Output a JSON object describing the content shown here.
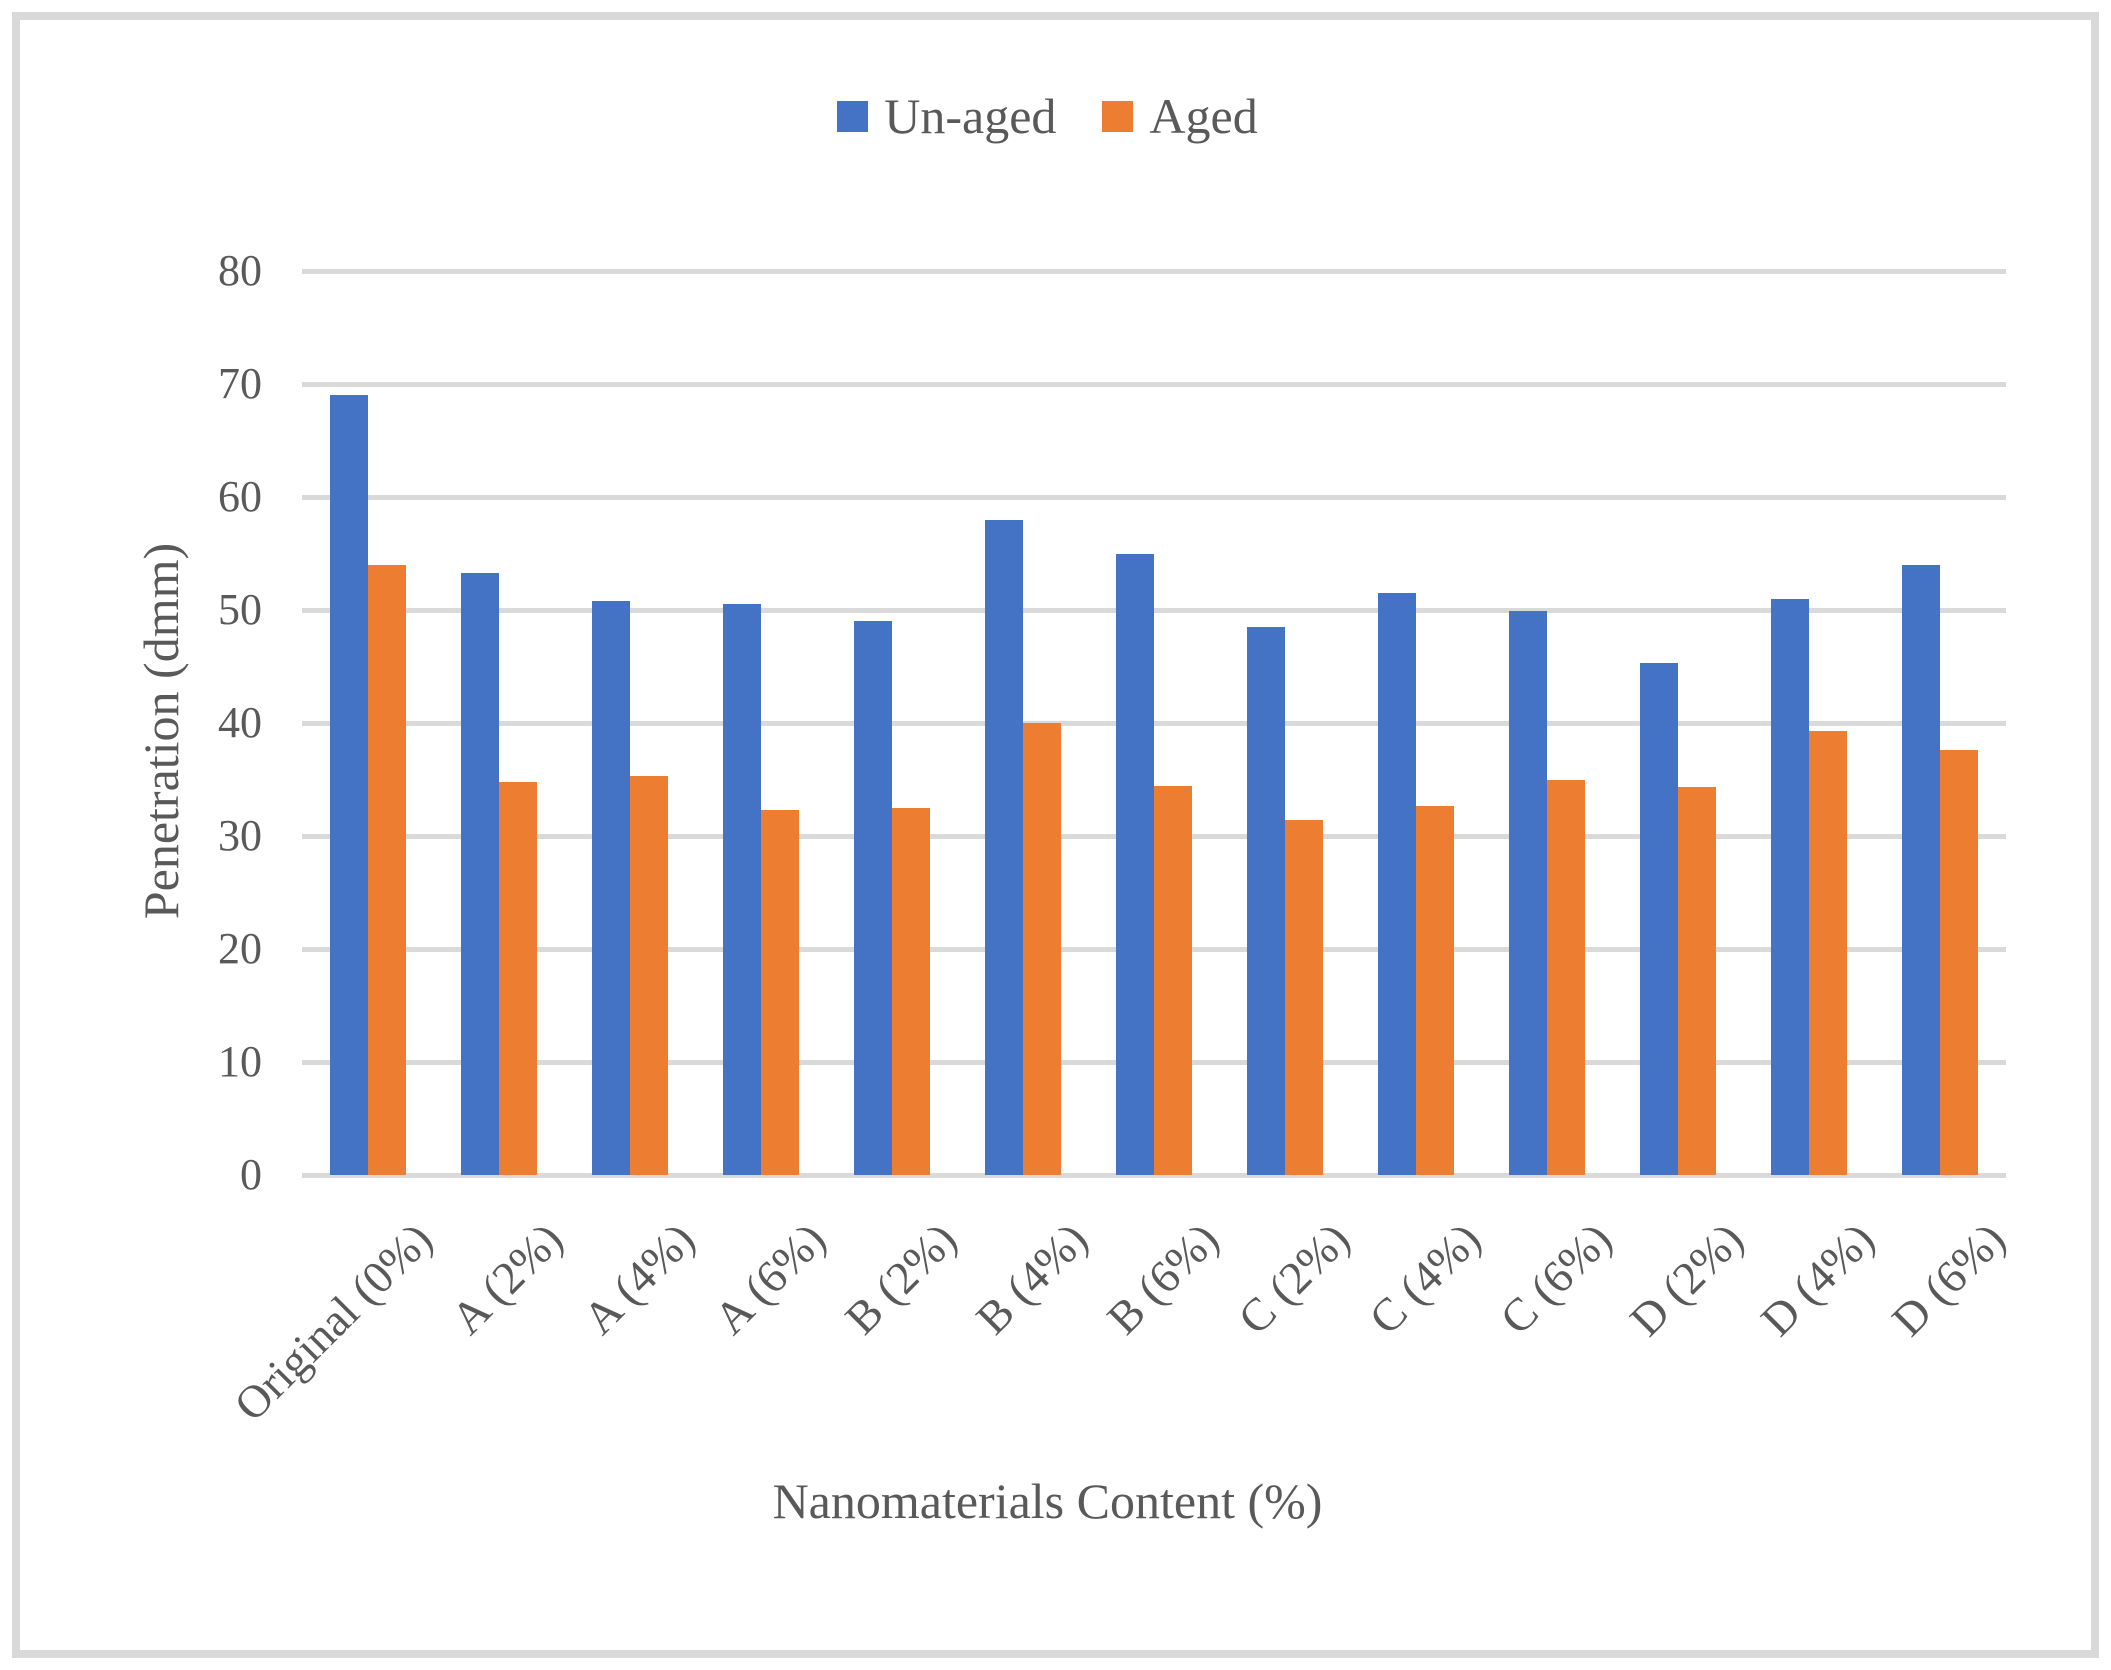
{
  "figure": {
    "background_color": "#FFFFFF",
    "border_color": "#D9D9D9",
    "text_color": "#595959",
    "gridline_color": "#D9D9D9"
  },
  "chart_data": {
    "type": "bar",
    "title": "",
    "xlabel": "Nanomaterials Content (%)",
    "ylabel": "Penetration (dmm)",
    "ylim": [
      0,
      80
    ],
    "yticks": [
      0,
      10,
      20,
      30,
      40,
      50,
      60,
      70,
      80
    ],
    "grid": true,
    "legend_position": "top-center",
    "categories": [
      "Original (0%)",
      "A (2%)",
      "A (4%)",
      "A (6%)",
      "B (2%)",
      "B (4%)",
      "B (6%)",
      "C (2%)",
      "C (4%)",
      "C (6%)",
      "D (2%)",
      "D (4%)",
      "D (6%)"
    ],
    "series": [
      {
        "name": "Un-aged",
        "color": "#4472C4",
        "values": [
          69,
          53.3,
          50.8,
          50.5,
          49,
          58,
          55,
          48.5,
          51.5,
          49.9,
          45.3,
          51,
          54
        ]
      },
      {
        "name": "Aged",
        "color": "#ED7D31",
        "values": [
          54,
          34.8,
          35.3,
          32.3,
          32.5,
          40,
          34.4,
          31.4,
          32.7,
          35,
          34.3,
          39.3,
          37.6
        ]
      }
    ]
  }
}
